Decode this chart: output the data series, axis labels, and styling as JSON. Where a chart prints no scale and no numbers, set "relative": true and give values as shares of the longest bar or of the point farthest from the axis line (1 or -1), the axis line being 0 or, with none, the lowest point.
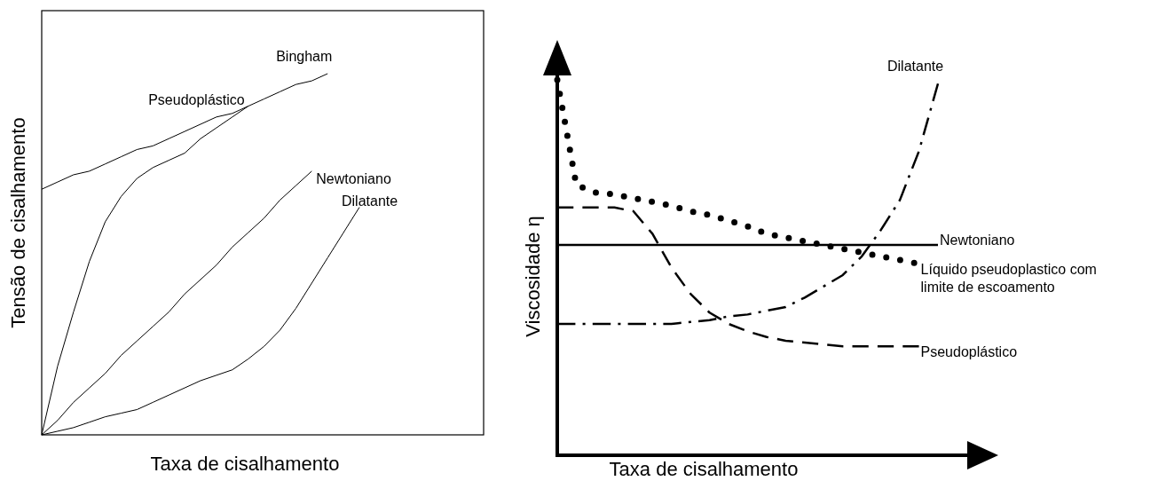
{
  "chart_data": [
    {
      "type": "line",
      "relative": true,
      "xlabel": "Taxa de cisalhamento",
      "ylabel": "Tensão de cisalhamento",
      "marker": "none",
      "line_style": "solid",
      "categories": [
        null,
        null,
        null,
        null,
        null,
        null,
        null,
        null,
        null,
        null,
        null,
        null,
        null,
        null,
        null,
        null,
        null,
        null,
        null,
        null,
        null
      ],
      "series": [
        {
          "name": "Bingham",
          "color": "#000000",
          "values": [
            0.68,
            0.7,
            0.72,
            0.73,
            0.75,
            0.77,
            0.79,
            0.8,
            0.82,
            0.84,
            0.86,
            0.88,
            0.89,
            0.91,
            0.93,
            0.95,
            0.97,
            0.98,
            1,
            null,
            null
          ]
        },
        {
          "name": "Pseudoplástico",
          "color": "#000000",
          "values": [
            0,
            0.19,
            0.34,
            0.48,
            0.59,
            0.66,
            0.71,
            0.74,
            0.76,
            0.78,
            0.82,
            0.85,
            0.88,
            0.91,
            null,
            null,
            null,
            null,
            null,
            null,
            null
          ]
        },
        {
          "name": "Newtoniano",
          "color": "#000000",
          "values": [
            0,
            0.04,
            0.09,
            0.13,
            0.17,
            0.22,
            0.26,
            0.3,
            0.34,
            0.39,
            0.43,
            0.47,
            0.52,
            0.56,
            0.6,
            0.65,
            0.69,
            0.73,
            null,
            null,
            null
          ]
        },
        {
          "name": "Dilatante",
          "color": "#000000",
          "values": [
            0,
            0.01,
            0.02,
            0.035,
            0.05,
            0.06,
            0.07,
            0.09,
            0.11,
            0.13,
            0.15,
            0.165,
            0.18,
            0.21,
            0.245,
            0.29,
            0.35,
            0.42,
            0.49,
            0.56,
            0.63
          ]
        }
      ]
    },
    {
      "type": "line",
      "relative": true,
      "xlabel": "Taxa de cisalhamento",
      "ylabel": "Viscosidade η",
      "marker": "none",
      "categories": [
        null,
        null,
        null,
        null,
        null,
        null,
        null,
        null,
        null,
        null,
        null,
        null,
        null,
        null,
        null,
        null,
        null,
        null,
        null,
        null,
        null
      ],
      "series": [
        {
          "name": "Dilatante",
          "color": "#000000",
          "line_style": "dashdot",
          "values": [
            0.35,
            0.35,
            0.35,
            0.35,
            0.35,
            0.35,
            0.35,
            0.355,
            0.36,
            0.37,
            0.375,
            0.385,
            0.395,
            0.42,
            0.45,
            0.48,
            0.53,
            0.6,
            0.68,
            0.81,
            0.99
          ]
        },
        {
          "name": "Newtoniano",
          "color": "#000000",
          "line_style": "solid",
          "values": [
            0.56,
            0.56,
            0.56,
            0.56,
            0.56,
            0.56,
            0.56,
            0.56,
            0.56,
            0.56,
            0.56,
            0.56,
            0.56,
            0.56,
            0.56,
            0.56,
            0.56,
            0.56,
            0.56,
            0.56,
            0.56
          ]
        },
        {
          "name": "Líquido pseudoplastico com limite de escoamento",
          "color": "#000000",
          "line_style": "dotted",
          "values": [
            1,
            0.72,
            0.7,
            0.695,
            0.685,
            0.675,
            0.665,
            0.65,
            0.64,
            0.625,
            0.61,
            0.59,
            0.58,
            0.57,
            0.56,
            0.55,
            0.54,
            0.53,
            0.52,
            0.51,
            null
          ]
        },
        {
          "name": "Pseudoplástico",
          "color": "#000000",
          "line_style": "dashed",
          "values": [
            0.66,
            0.66,
            0.66,
            0.66,
            0.65,
            0.59,
            0.5,
            0.43,
            0.38,
            0.35,
            0.33,
            0.315,
            0.305,
            0.3,
            0.295,
            0.29,
            0.29,
            0.29,
            0.29,
            0.29,
            null
          ]
        }
      ]
    }
  ]
}
